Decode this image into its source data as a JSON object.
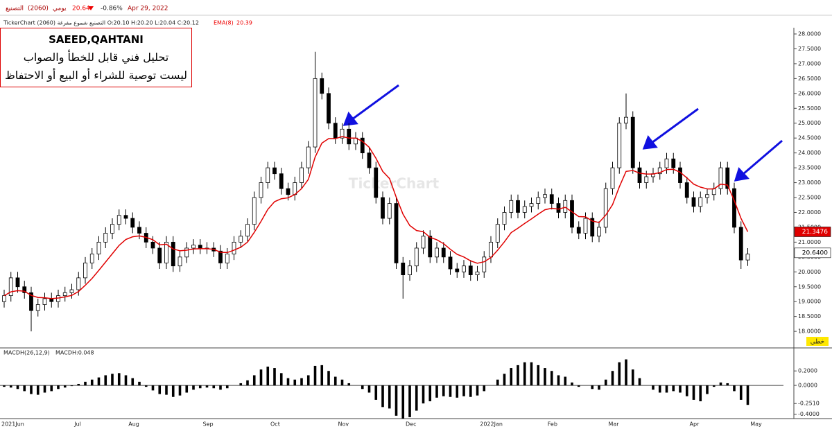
{
  "header": {
    "symbol_name": "التصنيع",
    "symbol_code": "(2060)",
    "period": "يومي",
    "last": "20.64",
    "change": "-0.86%",
    "date": "Apr 29, 2022",
    "info": "TickerChart التصنيع شموع مفرغة (2060) O:20.10 H:20.20 L:20.04 C:20.12",
    "ema_name": "EMA(8)",
    "ema_value": "20.39",
    "macd_name": "MACDH(26,12,9)",
    "macd_value": "MACDH:0.048",
    "scale_mode": "خطي",
    "watermark": "TickerChart"
  },
  "note": {
    "author": "SAEED,QAHTANI",
    "line1": "تحليل فني قابل للخطأ والصواب",
    "line2": "ليست توصية للشراء أو البيع أو الاحتفاظ"
  },
  "chart_data": [
    {
      "type": "candlestick",
      "up_color": "#ffffff",
      "down_color": "#000000",
      "ema_color": "#e00000",
      "open": [
        19.0,
        19.2,
        19.8,
        19.5,
        19.3,
        18.7,
        18.9,
        19.1,
        19.0,
        19.2,
        19.3,
        19.4,
        19.8,
        20.3,
        20.6,
        21.0,
        21.3,
        21.6,
        21.9,
        21.8,
        21.5,
        21.3,
        21.0,
        20.8,
        20.3,
        21.0,
        20.2,
        20.5,
        20.8,
        20.9,
        20.8,
        20.8,
        20.7,
        20.3,
        20.6,
        21.0,
        21.2,
        21.6,
        22.5,
        23.0,
        23.5,
        23.3,
        22.8,
        22.6,
        23.0,
        23.5,
        24.2,
        26.5,
        26.0,
        25.0,
        24.5,
        24.8,
        24.3,
        24.5,
        24.0,
        23.5,
        22.5,
        21.8,
        22.3,
        20.3,
        19.9,
        20.2,
        20.8,
        21.2,
        20.5,
        20.8,
        20.5,
        20.1,
        20.0,
        20.2,
        19.9,
        20.0,
        20.5,
        21.0,
        21.6,
        22.0,
        22.4,
        22.0,
        22.2,
        22.3,
        22.5,
        22.6,
        22.3,
        22.0,
        22.4,
        21.5,
        21.3,
        21.8,
        21.2,
        21.5,
        22.8,
        23.5,
        25.0,
        25.2,
        23.5,
        23.0,
        23.2,
        23.3,
        23.5,
        23.8,
        23.5,
        23.0,
        22.5,
        22.2,
        22.5,
        22.6,
        22.8,
        23.5,
        22.8,
        21.5,
        20.4
      ],
      "high": [
        19.4,
        20.0,
        20.0,
        19.7,
        19.5,
        19.1,
        19.3,
        19.3,
        19.4,
        19.5,
        19.6,
        20.0,
        20.5,
        20.8,
        21.2,
        21.5,
        21.8,
        22.1,
        22.1,
        22.0,
        21.7,
        21.5,
        21.2,
        21.0,
        21.2,
        21.2,
        20.7,
        21.0,
        21.1,
        21.1,
        21.0,
        21.0,
        20.9,
        20.8,
        21.2,
        21.4,
        21.8,
        22.7,
        23.2,
        23.7,
        23.7,
        23.5,
        23.0,
        23.2,
        23.7,
        24.4,
        27.4,
        26.7,
        26.2,
        25.2,
        25.0,
        25.0,
        24.7,
        24.7,
        24.2,
        23.7,
        22.7,
        22.5,
        22.5,
        20.5,
        20.4,
        21.0,
        21.4,
        21.4,
        21.0,
        21.0,
        20.7,
        20.3,
        20.4,
        20.4,
        20.2,
        20.7,
        21.2,
        21.8,
        22.2,
        22.6,
        22.6,
        22.4,
        22.5,
        22.7,
        22.8,
        22.8,
        22.5,
        22.6,
        22.6,
        21.7,
        22.0,
        22.0,
        21.7,
        23.0,
        23.7,
        25.2,
        26.0,
        25.4,
        23.7,
        23.4,
        23.5,
        23.7,
        24.0,
        24.0,
        23.7,
        23.2,
        22.7,
        22.7,
        22.8,
        23.0,
        23.7,
        23.7,
        23.0,
        21.7,
        20.8
      ],
      "low": [
        18.8,
        19.0,
        19.3,
        19.1,
        18.0,
        18.5,
        18.7,
        18.8,
        18.8,
        19.0,
        19.1,
        19.2,
        19.6,
        20.1,
        20.4,
        20.8,
        21.1,
        21.4,
        21.6,
        21.3,
        21.1,
        20.8,
        20.6,
        20.1,
        20.1,
        20.0,
        20.0,
        20.3,
        20.6,
        20.6,
        20.6,
        20.5,
        20.1,
        20.1,
        20.4,
        20.8,
        21.0,
        21.4,
        22.3,
        22.8,
        23.1,
        22.6,
        22.4,
        22.4,
        22.8,
        23.3,
        24.0,
        25.8,
        24.8,
        24.3,
        24.3,
        24.1,
        24.1,
        23.8,
        23.3,
        22.3,
        21.6,
        21.6,
        20.1,
        19.1,
        19.7,
        20.0,
        20.6,
        20.3,
        20.3,
        20.3,
        19.9,
        19.8,
        19.8,
        19.7,
        19.7,
        19.8,
        20.3,
        20.8,
        21.4,
        21.8,
        21.8,
        21.8,
        22.0,
        22.1,
        22.3,
        22.1,
        21.8,
        21.8,
        21.3,
        21.1,
        21.1,
        21.0,
        21.0,
        21.3,
        22.6,
        23.3,
        24.8,
        23.3,
        22.8,
        22.8,
        23.0,
        23.1,
        23.3,
        23.3,
        22.8,
        22.3,
        22.0,
        22.0,
        22.3,
        22.4,
        22.6,
        22.6,
        21.3,
        20.1,
        20.2
      ],
      "close": [
        19.2,
        19.8,
        19.5,
        19.3,
        18.7,
        18.9,
        19.1,
        19.0,
        19.2,
        19.3,
        19.4,
        19.8,
        20.3,
        20.6,
        21.0,
        21.3,
        21.6,
        21.9,
        21.8,
        21.5,
        21.3,
        21.0,
        20.8,
        20.3,
        21.0,
        20.2,
        20.5,
        20.8,
        20.9,
        20.8,
        20.8,
        20.7,
        20.3,
        20.6,
        21.0,
        21.2,
        21.6,
        22.5,
        23.0,
        23.5,
        23.3,
        22.8,
        22.6,
        23.0,
        23.5,
        24.2,
        26.5,
        26.0,
        25.0,
        24.5,
        24.8,
        24.3,
        24.5,
        24.0,
        23.5,
        22.5,
        21.8,
        22.3,
        20.3,
        19.9,
        20.2,
        20.8,
        21.2,
        20.5,
        20.8,
        20.5,
        20.1,
        20.0,
        20.2,
        19.9,
        20.0,
        20.5,
        21.0,
        21.6,
        22.0,
        22.4,
        22.0,
        22.2,
        22.3,
        22.5,
        22.6,
        22.3,
        22.0,
        22.4,
        21.5,
        21.3,
        21.8,
        21.2,
        21.5,
        22.8,
        23.5,
        25.0,
        25.2,
        23.5,
        23.0,
        23.2,
        23.3,
        23.5,
        23.8,
        23.5,
        23.0,
        22.5,
        22.2,
        22.5,
        22.6,
        22.8,
        23.5,
        22.8,
        21.5,
        20.4,
        20.6
      ],
      "ema": [
        19.2,
        19.33,
        19.37,
        19.35,
        19.21,
        19.14,
        19.13,
        19.1,
        19.12,
        19.16,
        19.21,
        19.34,
        19.55,
        19.78,
        20.05,
        20.33,
        20.61,
        20.89,
        21.09,
        21.18,
        21.21,
        21.16,
        21.08,
        20.91,
        20.93,
        20.77,
        20.71,
        20.73,
        20.77,
        20.78,
        20.78,
        20.76,
        20.66,
        20.65,
        20.73,
        20.83,
        21.0,
        21.33,
        21.7,
        22.1,
        22.36,
        22.46,
        22.49,
        22.6,
        22.8,
        23.11,
        23.86,
        24.33,
        24.48,
        24.48,
        24.55,
        24.5,
        24.5,
        24.39,
        24.19,
        23.82,
        23.38,
        23.14,
        22.51,
        21.94,
        21.56,
        21.39,
        21.35,
        21.16,
        21.08,
        20.95,
        20.76,
        20.59,
        20.5,
        20.37,
        20.29,
        20.34,
        20.48,
        20.73,
        21.01,
        21.32,
        21.47,
        21.63,
        21.78,
        21.94,
        22.09,
        22.14,
        22.11,
        22.17,
        22.02,
        21.86,
        21.85,
        21.71,
        21.66,
        21.91,
        22.26,
        22.86,
        23.38,
        23.41,
        23.32,
        23.29,
        23.29,
        23.34,
        23.44,
        23.45,
        23.35,
        23.16,
        22.95,
        22.85,
        22.79,
        22.79,
        22.95,
        22.92,
        22.4,
        21.8,
        21.35
      ],
      "ylim": [
        17.49,
        28.21
      ],
      "yticks": [
        {
          "value": 18,
          "label": "18.0000"
        },
        {
          "value": 18.5,
          "label": "18.5000"
        },
        {
          "value": 19,
          "label": "19.0000"
        },
        {
          "value": 19.5,
          "label": "19.5000"
        },
        {
          "value": 20,
          "label": "20.0000"
        },
        {
          "value": 20.5,
          "label": "20.5000"
        },
        {
          "value": 21,
          "label": "21.0000"
        },
        {
          "value": 21.5,
          "label": "21.5000"
        },
        {
          "value": 22,
          "label": "22.0000"
        },
        {
          "value": 22.5,
          "label": "22.5000"
        },
        {
          "value": 23,
          "label": "23.0000"
        },
        {
          "value": 23.5,
          "label": "23.5000"
        },
        {
          "value": 24,
          "label": "24.0000"
        },
        {
          "value": 24.5,
          "label": "24.5000"
        },
        {
          "value": 25,
          "label": "25.0000"
        },
        {
          "value": 25.5,
          "label": "25.5000"
        },
        {
          "value": 26,
          "label": "26.0000"
        },
        {
          "value": 26.5,
          "label": "26.5000"
        },
        {
          "value": 27,
          "label": "27.0000"
        },
        {
          "value": 27.5,
          "label": "27.5000"
        },
        {
          "value": 28,
          "label": "28.0000"
        }
      ],
      "price_tags": [
        {
          "value": 21.3476,
          "label": "21.3476",
          "color": "#e00000"
        },
        {
          "value": 20.64,
          "label": "20.6400",
          "color": "#ffffff"
        }
      ]
    },
    {
      "type": "bar",
      "color": "#000000",
      "categories": [
        "2021Jun",
        null,
        null,
        null,
        null,
        null,
        null,
        null,
        null,
        null,
        null,
        "Jul",
        null,
        null,
        null,
        null,
        null,
        null,
        null,
        "Aug",
        null,
        null,
        null,
        null,
        null,
        null,
        null,
        null,
        null,
        null,
        "Sep",
        null,
        null,
        null,
        null,
        null,
        null,
        null,
        null,
        null,
        "Oct",
        null,
        null,
        null,
        null,
        null,
        null,
        null,
        null,
        null,
        "Nov",
        null,
        null,
        null,
        null,
        null,
        null,
        null,
        null,
        null,
        "Dec",
        null,
        null,
        null,
        null,
        null,
        null,
        null,
        null,
        null,
        null,
        "2022Jan",
        null,
        null,
        null,
        null,
        null,
        null,
        null,
        null,
        null,
        "Feb",
        null,
        null,
        null,
        null,
        null,
        null,
        null,
        null,
        "Mar",
        null,
        null,
        null,
        null,
        null,
        null,
        null,
        null,
        null,
        null,
        null,
        "Apr",
        null,
        null,
        null,
        null,
        null,
        null,
        null,
        null,
        "May"
      ],
      "values": [
        -0.02,
        -0.03,
        -0.05,
        -0.08,
        -0.12,
        -0.13,
        -0.1,
        -0.08,
        -0.05,
        -0.03,
        -0.01,
        0.02,
        0.05,
        0.08,
        0.11,
        0.14,
        0.16,
        0.17,
        0.14,
        0.1,
        0.05,
        -0.02,
        -0.07,
        -0.12,
        -0.13,
        -0.16,
        -0.14,
        -0.1,
        -0.06,
        -0.04,
        -0.03,
        -0.04,
        -0.06,
        -0.04,
        0.0,
        0.03,
        0.07,
        0.14,
        0.22,
        0.26,
        0.24,
        0.17,
        0.1,
        0.08,
        0.1,
        0.14,
        0.27,
        0.28,
        0.2,
        0.12,
        0.08,
        0.03,
        0.0,
        -0.05,
        -0.1,
        -0.2,
        -0.3,
        -0.32,
        -0.42,
        -0.46,
        -0.44,
        -0.35,
        -0.25,
        -0.22,
        -0.17,
        -0.15,
        -0.16,
        -0.17,
        -0.15,
        -0.16,
        -0.14,
        -0.08,
        0.0,
        0.08,
        0.16,
        0.24,
        0.28,
        0.32,
        0.32,
        0.28,
        0.24,
        0.2,
        0.14,
        0.12,
        0.04,
        -0.02,
        0.0,
        -0.05,
        -0.06,
        0.08,
        0.2,
        0.32,
        0.36,
        0.22,
        0.1,
        0.0,
        -0.06,
        -0.1,
        -0.1,
        -0.08,
        -0.1,
        -0.15,
        -0.2,
        -0.22,
        -0.12,
        -0.02,
        0.04,
        0.03,
        -0.08,
        -0.2,
        -0.27,
        null
      ],
      "ylim": [
        -0.46,
        0.49
      ],
      "yticks": [
        {
          "value": 0.2,
          "label": "0.2000"
        },
        {
          "value": 0,
          "label": "0.0000"
        },
        {
          "value": -0.251,
          "label": "-0.2510"
        },
        {
          "value": -0.4,
          "label": "-0.4000"
        }
      ]
    }
  ]
}
